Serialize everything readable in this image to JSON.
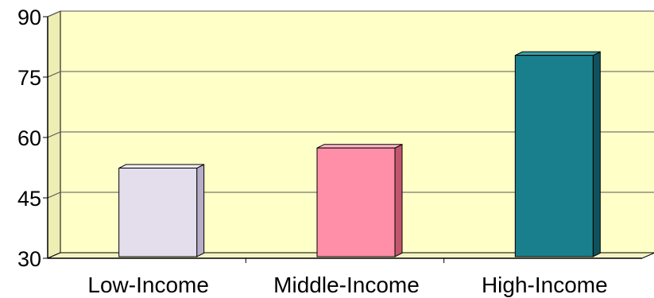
{
  "chart_data": {
    "type": "bar",
    "categories": [
      "Low-Income",
      "Middle-Income",
      "High-Income"
    ],
    "values": [
      52,
      57,
      80
    ],
    "ylim": [
      30,
      90
    ],
    "yticks": [
      30,
      45,
      60,
      75,
      90
    ],
    "grid": true,
    "three_d": true,
    "plot_background": "#FFFFC8",
    "bar_colors": [
      "#E4DEEC",
      "#FF8FA8",
      "#1A7F8C"
    ],
    "bar_side_colors": [
      "#B7ADC8",
      "#C2566F",
      "#0E525C"
    ],
    "bar_top_colors": [
      "#F1EDF6",
      "#FFB7C7",
      "#3AA0AC"
    ]
  }
}
